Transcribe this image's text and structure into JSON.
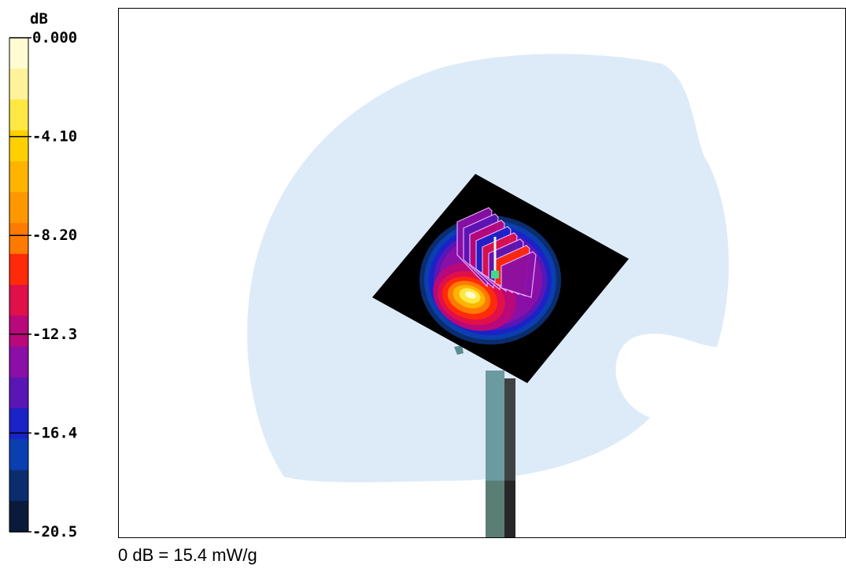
{
  "caption": "0 dB = 15.4 mW/g",
  "colors": {
    "scale": [
      "#000000",
      "#0a1a3a",
      "#0b2d6e",
      "#0a3fb0",
      "#1a22c8",
      "#5a16b4",
      "#8a0fa6",
      "#b8087a",
      "#e0104a",
      "#ff2a0a",
      "#ff7a00",
      "#ff9800",
      "#ffb400",
      "#ffd000",
      "#ffe844",
      "#fff29a",
      "#fffbd2"
    ],
    "head_phantom": "#ddebf8",
    "plate": "#000000",
    "probe_marker": "#3ddc8a",
    "stand": "#5e8a8f"
  },
  "chart_data": {
    "type": "heatmap",
    "title": "",
    "colorbar": {
      "unit": "dB",
      "min": -20.5,
      "max": 0.0,
      "tick_values": [
        0.0,
        -4.1,
        -8.2,
        -12.3,
        -16.4,
        -20.5
      ],
      "tick_labels": [
        "0.000",
        "-4.10",
        "-8.20",
        "-12.3",
        "-16.4",
        "-20.5"
      ],
      "levels": 16
    },
    "reference": "0 dB = 15.4 mW/g",
    "peak_db": 0.0
  }
}
